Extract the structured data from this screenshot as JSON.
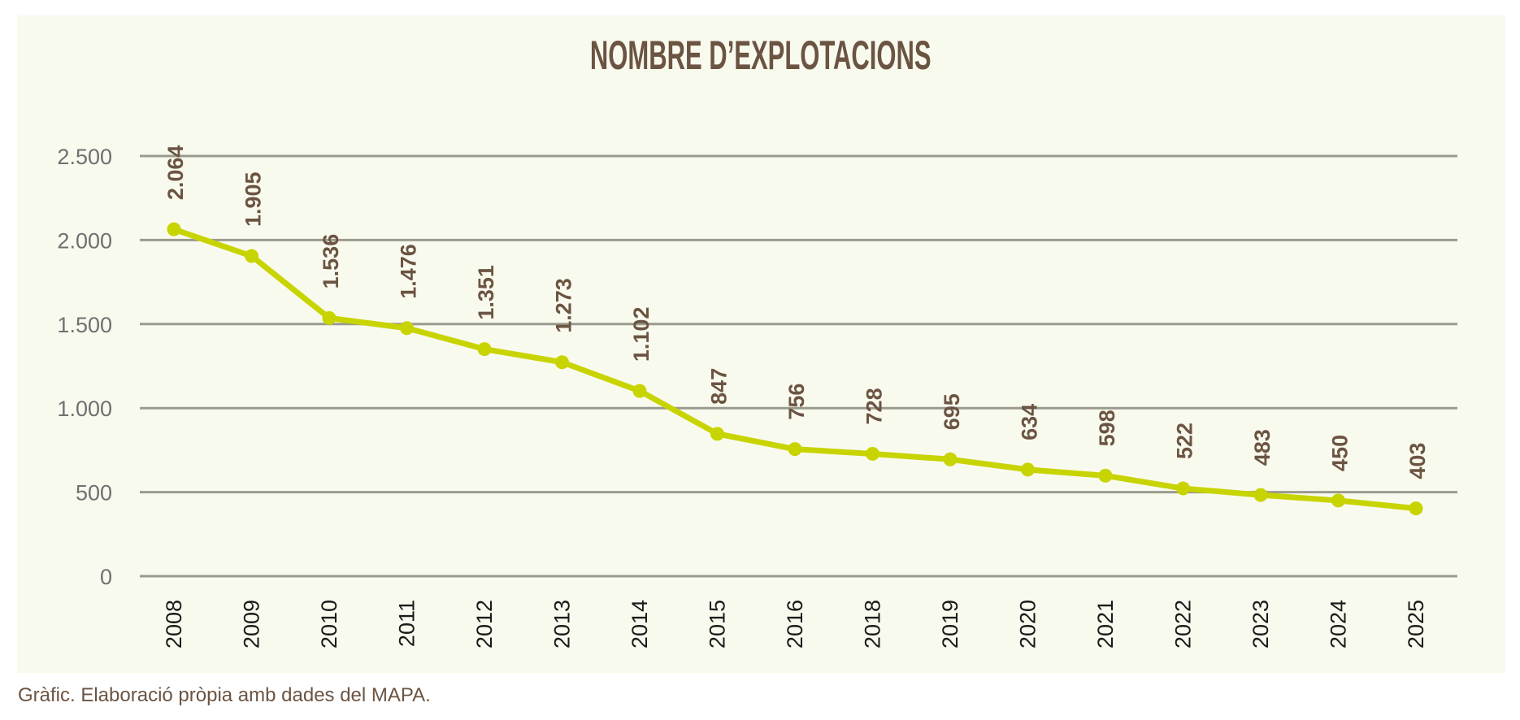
{
  "chart_data": {
    "type": "line",
    "title": "NOMBRE D’EXPLOTACIONS",
    "xlabel": "",
    "ylabel": "",
    "categories": [
      "2008",
      "2009",
      "2010",
      "2011",
      "2012",
      "2013",
      "2014",
      "2015",
      "2016",
      "2018",
      "2019",
      "2020",
      "2021",
      "2022",
      "2023",
      "2024",
      "2025"
    ],
    "series": [
      {
        "name": "Nombre d’explotacions",
        "values": [
          2064,
          1905,
          1536,
          1476,
          1351,
          1273,
          1102,
          847,
          756,
          728,
          695,
          634,
          598,
          522,
          483,
          450,
          403
        ],
        "value_labels": [
          "2.064",
          "1.905",
          "1.536",
          "1.476",
          "1.351",
          "1.273",
          "1.102",
          "847",
          "756",
          "728",
          "695",
          "634",
          "598",
          "522",
          "483",
          "450",
          "403"
        ],
        "color": "#c8d400"
      }
    ],
    "ylim": [
      0,
      2500
    ],
    "yticks": [
      0,
      500,
      1000,
      1500,
      2000,
      2500
    ],
    "ytick_labels": [
      "0",
      "500",
      "1.000",
      "1.500",
      "2.000",
      "2.500"
    ],
    "grid": true,
    "legend": "none"
  },
  "colors": {
    "background": "#f9faee",
    "line": "#c8d400",
    "label": "#6b5442",
    "grid": "#9a9a8e"
  },
  "footer": "Gràfic. Elaboració pròpia amb dades del MAPA."
}
